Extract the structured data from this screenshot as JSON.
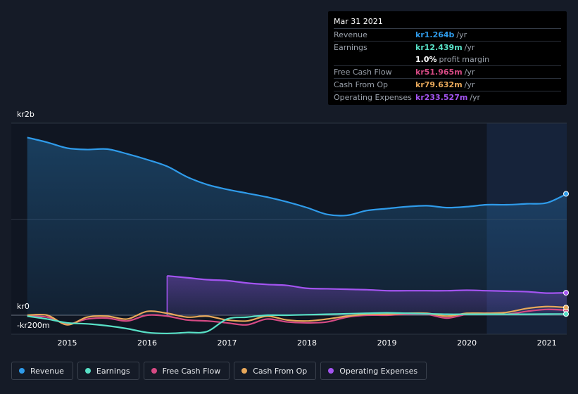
{
  "tooltip": {
    "date": "Mar 31 2021",
    "rows": [
      {
        "label": "Revenue",
        "value": "kr1.264b",
        "unit": "/yr",
        "color": "#2f9bea"
      },
      {
        "label": "Earnings",
        "value": "kr12.439m",
        "unit": "/yr",
        "color": "#58e0c6"
      },
      {
        "label": "",
        "value": "1.0%",
        "unit": "profit margin",
        "color": "#ffffff"
      },
      {
        "label": "Free Cash Flow",
        "value": "kr51.965m",
        "unit": "/yr",
        "color": "#d64a84"
      },
      {
        "label": "Cash From Op",
        "value": "kr79.632m",
        "unit": "/yr",
        "color": "#e8a85a"
      },
      {
        "label": "Operating Expenses",
        "value": "kr233.527m",
        "unit": "/yr",
        "color": "#a354f0"
      }
    ]
  },
  "legend": [
    {
      "label": "Revenue",
      "color": "#2f9bea"
    },
    {
      "label": "Earnings",
      "color": "#58e0c6"
    },
    {
      "label": "Free Cash Flow",
      "color": "#d64a84"
    },
    {
      "label": "Cash From Op",
      "color": "#e8a85a"
    },
    {
      "label": "Operating Expenses",
      "color": "#a354f0"
    }
  ],
  "chart_data": {
    "type": "line",
    "unit": "kr millions",
    "ylim": [
      -200,
      2000
    ],
    "y_tick_labels": [
      {
        "value": 2000,
        "label": "kr2b"
      },
      {
        "value": 0,
        "label": "kr0"
      },
      {
        "value": -200,
        "label": "-kr200m"
      }
    ],
    "x_tick_labels": [
      {
        "value": 2015,
        "label": "2015"
      },
      {
        "value": 2016,
        "label": "2016"
      },
      {
        "value": 2017,
        "label": "2017"
      },
      {
        "value": 2018,
        "label": "2018"
      },
      {
        "value": 2019,
        "label": "2019"
      },
      {
        "value": 2020,
        "label": "2020"
      },
      {
        "value": 2021,
        "label": "2021"
      }
    ],
    "xlim": [
      2014.3,
      2021.25
    ],
    "highlight_from": 2020.25,
    "series": [
      {
        "name": "Revenue",
        "color": "#2f9bea",
        "fill": true,
        "x": [
          2014.5,
          2014.75,
          2015.0,
          2015.25,
          2015.5,
          2015.75,
          2016.0,
          2016.25,
          2016.5,
          2016.75,
          2017.0,
          2017.25,
          2017.5,
          2017.75,
          2018.0,
          2018.25,
          2018.5,
          2018.75,
          2019.0,
          2019.25,
          2019.5,
          2019.75,
          2020.0,
          2020.25,
          2020.5,
          2020.75,
          2021.0,
          2021.25
        ],
        "y": [
          1850,
          1800,
          1740,
          1725,
          1730,
          1680,
          1620,
          1550,
          1440,
          1360,
          1310,
          1270,
          1230,
          1180,
          1120,
          1050,
          1040,
          1090,
          1110,
          1130,
          1140,
          1120,
          1130,
          1150,
          1150,
          1160,
          1170,
          1264
        ]
      },
      {
        "name": "Operating Expenses",
        "color": "#a354f0",
        "fill": true,
        "x": [
          2016.25,
          2016.5,
          2016.75,
          2017.0,
          2017.25,
          2017.5,
          2017.75,
          2018.0,
          2018.25,
          2018.5,
          2018.75,
          2019.0,
          2019.25,
          2019.5,
          2019.75,
          2020.0,
          2020.25,
          2020.5,
          2020.75,
          2021.0,
          2021.25
        ],
        "y": [
          410,
          390,
          370,
          360,
          335,
          320,
          310,
          280,
          275,
          270,
          265,
          255,
          255,
          255,
          255,
          260,
          255,
          250,
          245,
          230,
          233.5
        ]
      },
      {
        "name": "Earnings",
        "color": "#58e0c6",
        "fill": false,
        "x": [
          2014.5,
          2014.75,
          2015.0,
          2015.25,
          2015.5,
          2015.75,
          2016.0,
          2016.25,
          2016.5,
          2016.75,
          2017.0,
          2017.25,
          2017.5,
          2017.75,
          2018.0,
          2018.25,
          2018.5,
          2018.75,
          2019.0,
          2019.25,
          2019.5,
          2019.75,
          2020.0,
          2020.25,
          2020.5,
          2020.75,
          2021.0,
          2021.25
        ],
        "y": [
          -10,
          -40,
          -80,
          -90,
          -110,
          -140,
          -180,
          -190,
          -180,
          -170,
          -40,
          -20,
          0,
          0,
          5,
          10,
          15,
          20,
          25,
          20,
          15,
          10,
          10,
          10,
          10,
          10,
          12,
          12.4
        ]
      },
      {
        "name": "Free Cash Flow",
        "color": "#d64a84",
        "fill": false,
        "x": [
          2014.5,
          2014.75,
          2015.0,
          2015.25,
          2015.5,
          2015.75,
          2016.0,
          2016.25,
          2016.5,
          2016.75,
          2017.0,
          2017.25,
          2017.5,
          2017.75,
          2018.0,
          2018.25,
          2018.5,
          2018.75,
          2019.0,
          2019.25,
          2019.5,
          2019.75,
          2020.0,
          2020.25,
          2020.5,
          2020.75,
          2021.0,
          2021.25
        ],
        "y": [
          -10,
          -20,
          -90,
          -40,
          -30,
          -60,
          0,
          -10,
          -50,
          -60,
          -80,
          -100,
          -40,
          -70,
          -80,
          -70,
          -20,
          0,
          0,
          10,
          10,
          -30,
          10,
          20,
          10,
          40,
          60,
          52
        ]
      },
      {
        "name": "Cash From Op",
        "color": "#e8a85a",
        "fill": false,
        "x": [
          2014.5,
          2014.75,
          2015.0,
          2015.25,
          2015.5,
          2015.75,
          2016.0,
          2016.25,
          2016.5,
          2016.75,
          2017.0,
          2017.25,
          2017.5,
          2017.75,
          2018.0,
          2018.25,
          2018.5,
          2018.75,
          2019.0,
          2019.25,
          2019.5,
          2019.75,
          2020.0,
          2020.25,
          2020.5,
          2020.75,
          2021.0,
          2021.25
        ],
        "y": [
          0,
          0,
          -100,
          -20,
          -10,
          -40,
          40,
          20,
          -20,
          -10,
          -50,
          -60,
          -10,
          -50,
          -60,
          -40,
          -10,
          10,
          10,
          20,
          20,
          -10,
          20,
          20,
          30,
          70,
          90,
          79.6
        ]
      }
    ]
  }
}
